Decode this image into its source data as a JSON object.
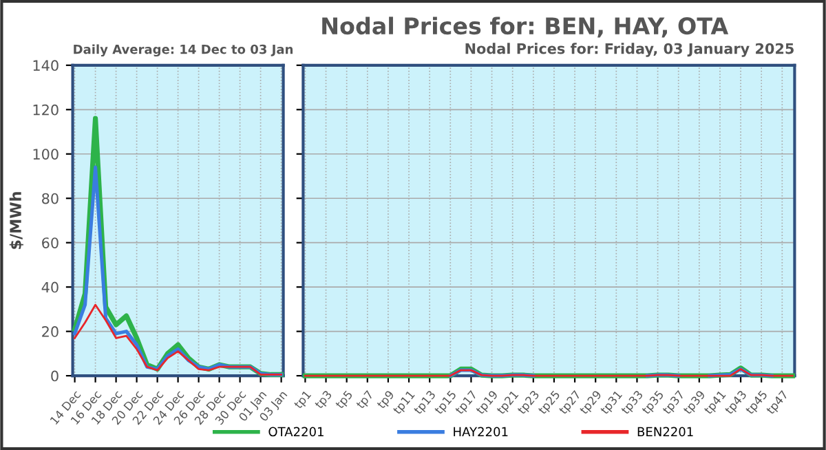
{
  "chart_data": [
    {
      "type": "line",
      "subtitle": "Daily Average: 14 Dec to 03 Jan",
      "ylabel": "$/MWh",
      "categories": [
        "14 Dec",
        null,
        "16 Dec",
        null,
        "18 Dec",
        null,
        "20 Dec",
        null,
        "22 Dec",
        null,
        "24 Dec",
        null,
        "26 Dec",
        null,
        "28 Dec",
        null,
        "30 Dec",
        null,
        "01 Jan",
        null,
        "03 Jan"
      ],
      "ylim": [
        0,
        140
      ],
      "yticks": [
        0,
        20,
        40,
        60,
        80,
        100,
        120,
        140
      ],
      "grid": true,
      "legend": "bottom",
      "series": [
        {
          "name": "OTA2201",
          "color": "#2db34a",
          "values": [
            21,
            37,
            116,
            31,
            23,
            27,
            17,
            5,
            3,
            10,
            14,
            8,
            4,
            3,
            5,
            4,
            4,
            4,
            1,
            0.5,
            0.5
          ]
        },
        {
          "name": "HAY2201",
          "color": "#3a7de0",
          "values": [
            19,
            32,
            94,
            26,
            19,
            20,
            14,
            4,
            3,
            9,
            12,
            7,
            4,
            3,
            5,
            4,
            4,
            4,
            1,
            0.5,
            0.5
          ]
        },
        {
          "name": "BEN2201",
          "color": "#e8262a",
          "values": [
            17,
            24,
            32,
            25,
            17,
            18,
            12,
            4,
            2.5,
            8,
            11,
            7,
            3,
            2.5,
            4,
            4,
            4,
            4,
            0.5,
            0.5,
            0.5
          ]
        }
      ]
    },
    {
      "type": "line",
      "title": "Nodal Prices for: BEN, HAY, OTA",
      "subtitle": "Nodal Prices for: Friday, 03 January 2025",
      "categories": [
        "tp1",
        null,
        "tp3",
        null,
        "tp5",
        null,
        "tp7",
        null,
        "tp9",
        null,
        "tp11",
        null,
        "tp13",
        null,
        "tp15",
        null,
        "tp17",
        null,
        "tp19",
        null,
        "tp21",
        null,
        "tp23",
        null,
        "tp25",
        null,
        "tp27",
        null,
        "tp29",
        null,
        "tp31",
        null,
        "tp33",
        null,
        "tp35",
        null,
        "tp37",
        null,
        "tp39",
        null,
        "tp41",
        null,
        "tp43",
        null,
        "tp45",
        null,
        "tp47",
        null
      ],
      "ylim": [
        0,
        140
      ],
      "yticks": [
        0,
        20,
        40,
        60,
        80,
        100,
        120,
        140
      ],
      "grid": true,
      "tick_labels": "x",
      "series": [
        {
          "color": "#2db34a",
          "values": [
            0,
            0,
            0,
            0,
            0,
            0,
            0,
            0,
            0,
            0,
            0,
            0,
            0,
            0,
            0,
            3,
            3,
            0.3,
            0,
            0,
            0.3,
            0.3,
            0,
            0,
            0,
            0,
            0,
            0,
            0,
            0,
            0,
            0,
            0,
            0,
            0.3,
            0.3,
            0,
            0,
            0,
            0,
            0.3,
            0.5,
            3.5,
            0.3,
            0.3,
            0,
            0,
            0
          ]
        },
        {
          "color": "#3a7de0",
          "values": [
            null,
            null,
            null,
            null,
            null,
            null,
            null,
            null,
            null,
            null,
            null,
            null,
            null,
            null,
            0,
            2.5,
            2.5,
            0.3,
            0,
            0,
            0.3,
            0.3,
            0,
            null,
            null,
            null,
            null,
            null,
            null,
            null,
            null,
            null,
            null,
            0,
            0.3,
            0.3,
            0,
            null,
            null,
            0,
            0.3,
            0.5,
            3,
            0.3,
            0.3,
            0,
            null,
            null
          ]
        },
        {
          "color": "#e8262a",
          "values": [
            0,
            0,
            0,
            0,
            0,
            0,
            0,
            0,
            0,
            0,
            0,
            0,
            0,
            0,
            0,
            2.5,
            2.5,
            0.3,
            0,
            0,
            0.3,
            0.3,
            0,
            0,
            0,
            0,
            0,
            0,
            0,
            0,
            0,
            0,
            0,
            0,
            0.3,
            0.3,
            0,
            0,
            0,
            0,
            0,
            0,
            3,
            0.3,
            0.3,
            0,
            0,
            0
          ]
        }
      ]
    }
  ]
}
